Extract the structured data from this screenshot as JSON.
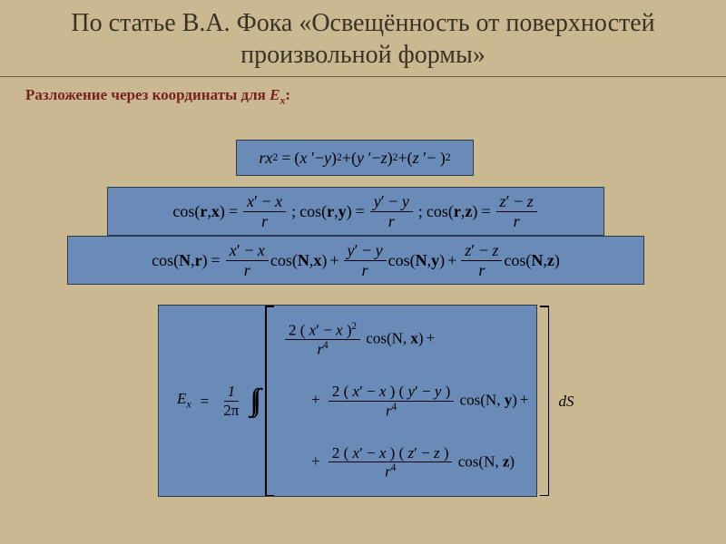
{
  "colors": {
    "page_bg": "#c9b890",
    "box_bg": "#6a8bb8",
    "box_border": "#2f3a49",
    "title_color": "#393327",
    "subhead_color": "#7a2020",
    "title_underline": "#6b5d3f"
  },
  "title": "По статье В.А. Фока «Освещённость от поверхностей произвольной формы»",
  "subhead": {
    "prefix": "Разложение через координаты для ",
    "E": "E",
    "x": "x",
    "suffix": ":"
  },
  "f1": {
    "lhs_r": "r",
    "lhs_x": "x",
    "t1_a": "x",
    "t1_b": "y",
    "t2_a": "y",
    "t2_b": "z",
    "t3_a": "z"
  },
  "f2": {
    "cos": "cos",
    "r": "r",
    "x": "x",
    "y": "y",
    "z": "z",
    "n1a": "x",
    "n1b": "x",
    "d": "r",
    "n2a": "y",
    "n2b": "y",
    "n3a": "z",
    "n3b": "z"
  },
  "f3": {
    "cos": "cos",
    "N": "N",
    "r": "r",
    "x": "x",
    "y": "y",
    "z": "z",
    "n1a": "x",
    "n1b": "x",
    "d": "r",
    "n2a": "y",
    "n2b": "y",
    "n3a": "z",
    "n3b": "z"
  },
  "f4": {
    "E": "E",
    "x": "x",
    "one": "1",
    "twopi": "2π",
    "two": "2",
    "r4": "r",
    "pow4": "4",
    "cos": "cos",
    "N": "N",
    "ax": "x",
    "ay": "y",
    "az": "z",
    "dS": "dS"
  }
}
